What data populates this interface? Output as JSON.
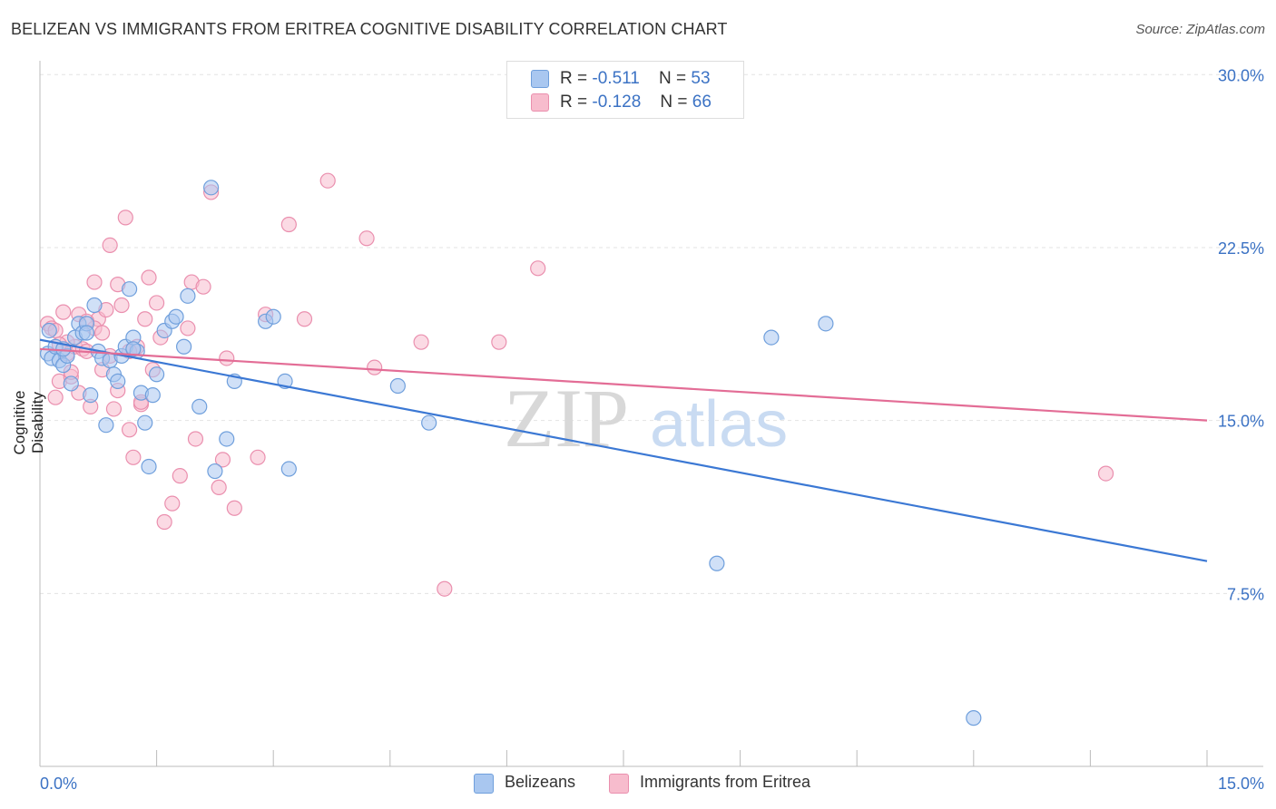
{
  "title": "BELIZEAN VS IMMIGRANTS FROM ERITREA COGNITIVE DISABILITY CORRELATION CHART",
  "source": "Source: ZipAtlas.com",
  "watermark": {
    "zip": "ZIP",
    "atlas": "atlas"
  },
  "legend": {
    "rows": [
      {
        "r_label": "R =",
        "r_value": "-0.511",
        "n_label": "N =",
        "n_value": "53"
      },
      {
        "r_label": "R =",
        "r_value": "-0.128",
        "n_label": "N =",
        "n_value": "66"
      }
    ]
  },
  "colors": {
    "blue_fill": "#a9c7f0",
    "blue_stroke": "#6f9fdc",
    "blue_line": "#3b78d4",
    "pink_fill": "#f7bccd",
    "pink_stroke": "#ea8fae",
    "pink_line": "#e36d96",
    "axis_label": "#3b72c4",
    "grid": "#e3e3e3"
  },
  "chart_data": {
    "type": "scatter",
    "ylabel": "Cognitive Disability",
    "xlim": [
      0,
      15
    ],
    "ylim": [
      0,
      30.6
    ],
    "x_tick_labels": [
      "0.0%",
      "15.0%"
    ],
    "y_ticks": [
      7.5,
      15.0,
      22.5,
      30.0
    ],
    "y_tick_labels": [
      "7.5%",
      "15.0%",
      "22.5%",
      "30.0%"
    ],
    "grid": true,
    "legend_position": "top-center",
    "series": [
      {
        "name": "Belizeans",
        "color": "#a9c7f0",
        "trend": {
          "x": [
            0,
            15
          ],
          "y": [
            18.5,
            8.9
          ]
        },
        "points": [
          [
            0.1,
            17.9
          ],
          [
            0.15,
            17.7
          ],
          [
            0.2,
            18.2
          ],
          [
            0.25,
            17.6
          ],
          [
            0.3,
            17.4
          ],
          [
            0.35,
            17.8
          ],
          [
            0.4,
            16.6
          ],
          [
            0.45,
            18.6
          ],
          [
            0.5,
            19.2
          ],
          [
            0.55,
            18.8
          ],
          [
            0.6,
            19.2
          ],
          [
            0.65,
            16.1
          ],
          [
            0.7,
            20.0
          ],
          [
            0.75,
            18.0
          ],
          [
            0.8,
            17.7
          ],
          [
            0.85,
            14.8
          ],
          [
            0.9,
            17.6
          ],
          [
            0.95,
            17.0
          ],
          [
            1.0,
            16.7
          ],
          [
            1.05,
            17.8
          ],
          [
            1.1,
            18.2
          ],
          [
            1.15,
            20.7
          ],
          [
            1.2,
            18.6
          ],
          [
            1.25,
            18.0
          ],
          [
            1.3,
            16.2
          ],
          [
            1.35,
            14.9
          ],
          [
            1.4,
            13.0
          ],
          [
            1.45,
            16.1
          ],
          [
            1.5,
            17.0
          ],
          [
            1.6,
            18.9
          ],
          [
            1.7,
            19.3
          ],
          [
            1.75,
            19.5
          ],
          [
            1.85,
            18.2
          ],
          [
            1.9,
            20.4
          ],
          [
            2.05,
            15.6
          ],
          [
            2.2,
            25.1
          ],
          [
            2.25,
            12.8
          ],
          [
            2.4,
            14.2
          ],
          [
            2.5,
            16.7
          ],
          [
            2.9,
            19.3
          ],
          [
            3.0,
            19.5
          ],
          [
            3.15,
            16.7
          ],
          [
            3.2,
            12.9
          ],
          [
            4.6,
            16.5
          ],
          [
            5.0,
            14.9
          ],
          [
            8.7,
            8.8
          ],
          [
            9.4,
            18.6
          ],
          [
            10.1,
            19.2
          ],
          [
            12.0,
            2.1
          ],
          [
            0.3,
            18.1
          ],
          [
            0.6,
            18.8
          ],
          [
            1.2,
            18.1
          ],
          [
            0.12,
            18.9
          ]
        ]
      },
      {
        "name": "Immigrants from Eritrea",
        "color": "#f7bccd",
        "trend": {
          "x": [
            0,
            15
          ],
          "y": [
            18.1,
            15.0
          ]
        },
        "points": [
          [
            0.1,
            19.2
          ],
          [
            0.15,
            19.0
          ],
          [
            0.2,
            16.0
          ],
          [
            0.25,
            16.7
          ],
          [
            0.3,
            19.7
          ],
          [
            0.35,
            17.9
          ],
          [
            0.4,
            16.9
          ],
          [
            0.45,
            18.2
          ],
          [
            0.5,
            16.2
          ],
          [
            0.55,
            18.1
          ],
          [
            0.6,
            18.0
          ],
          [
            0.65,
            15.6
          ],
          [
            0.7,
            21.0
          ],
          [
            0.75,
            19.4
          ],
          [
            0.8,
            17.2
          ],
          [
            0.85,
            19.8
          ],
          [
            0.9,
            22.6
          ],
          [
            0.95,
            15.5
          ],
          [
            1.0,
            16.3
          ],
          [
            1.05,
            20.0
          ],
          [
            1.1,
            23.8
          ],
          [
            1.15,
            14.6
          ],
          [
            1.2,
            13.4
          ],
          [
            1.25,
            18.2
          ],
          [
            1.3,
            15.7
          ],
          [
            1.35,
            19.4
          ],
          [
            1.4,
            21.2
          ],
          [
            1.5,
            20.1
          ],
          [
            1.55,
            18.6
          ],
          [
            1.6,
            10.6
          ],
          [
            1.7,
            11.4
          ],
          [
            1.8,
            12.6
          ],
          [
            1.9,
            19.0
          ],
          [
            1.95,
            21.0
          ],
          [
            2.0,
            14.2
          ],
          [
            2.1,
            20.8
          ],
          [
            2.2,
            24.9
          ],
          [
            2.3,
            12.1
          ],
          [
            2.35,
            13.3
          ],
          [
            2.4,
            17.7
          ],
          [
            2.5,
            11.2
          ],
          [
            2.8,
            13.4
          ],
          [
            2.9,
            19.6
          ],
          [
            3.2,
            23.5
          ],
          [
            3.4,
            19.4
          ],
          [
            3.7,
            25.4
          ],
          [
            4.2,
            22.9
          ],
          [
            4.3,
            17.3
          ],
          [
            4.9,
            18.4
          ],
          [
            5.2,
            7.7
          ],
          [
            5.9,
            18.4
          ],
          [
            6.4,
            21.6
          ],
          [
            13.7,
            12.7
          ],
          [
            0.7,
            19.0
          ],
          [
            1.0,
            20.9
          ],
          [
            1.3,
            15.8
          ],
          [
            0.2,
            18.9
          ],
          [
            0.5,
            19.6
          ],
          [
            0.9,
            17.8
          ],
          [
            0.35,
            18.4
          ],
          [
            1.15,
            18.0
          ],
          [
            0.4,
            17.1
          ],
          [
            0.6,
            19.3
          ],
          [
            0.8,
            18.8
          ],
          [
            1.45,
            17.2
          ],
          [
            0.25,
            18.3
          ]
        ]
      }
    ]
  }
}
